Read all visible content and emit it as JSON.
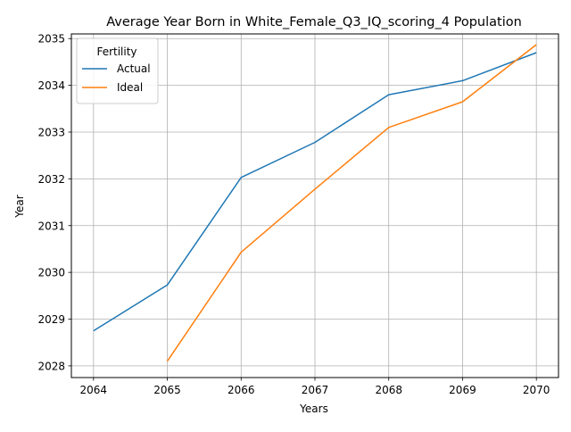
{
  "chart_data": {
    "type": "line",
    "title": "Average Year Born in White_Female_Q3_IQ_scoring_4 Population",
    "xlabel": "Years",
    "ylabel": "Year",
    "x": [
      2064,
      2065,
      2066,
      2067,
      2068,
      2069,
      2070
    ],
    "xlim": [
      2063.7,
      2070.3
    ],
    "ylim": [
      2027.75,
      2035.1
    ],
    "xticks": [
      2064,
      2065,
      2066,
      2067,
      2068,
      2069,
      2070
    ],
    "yticks": [
      2028,
      2029,
      2030,
      2031,
      2032,
      2033,
      2034,
      2035
    ],
    "grid": true,
    "legend": {
      "title": "Fertility",
      "placement": "top-left"
    },
    "series": [
      {
        "name": "Actual",
        "color": "#1f77b4",
        "x": [
          2064,
          2065,
          2066,
          2067,
          2068,
          2069,
          2070
        ],
        "values": [
          2028.75,
          2029.73,
          2032.03,
          2032.78,
          2033.8,
          2034.1,
          2034.7
        ]
      },
      {
        "name": "Ideal",
        "color": "#ff7f0e",
        "x": [
          2065,
          2066,
          2067,
          2068,
          2069,
          2070
        ],
        "values": [
          2028.1,
          2030.43,
          2031.78,
          2033.1,
          2033.65,
          2034.87
        ]
      }
    ]
  }
}
